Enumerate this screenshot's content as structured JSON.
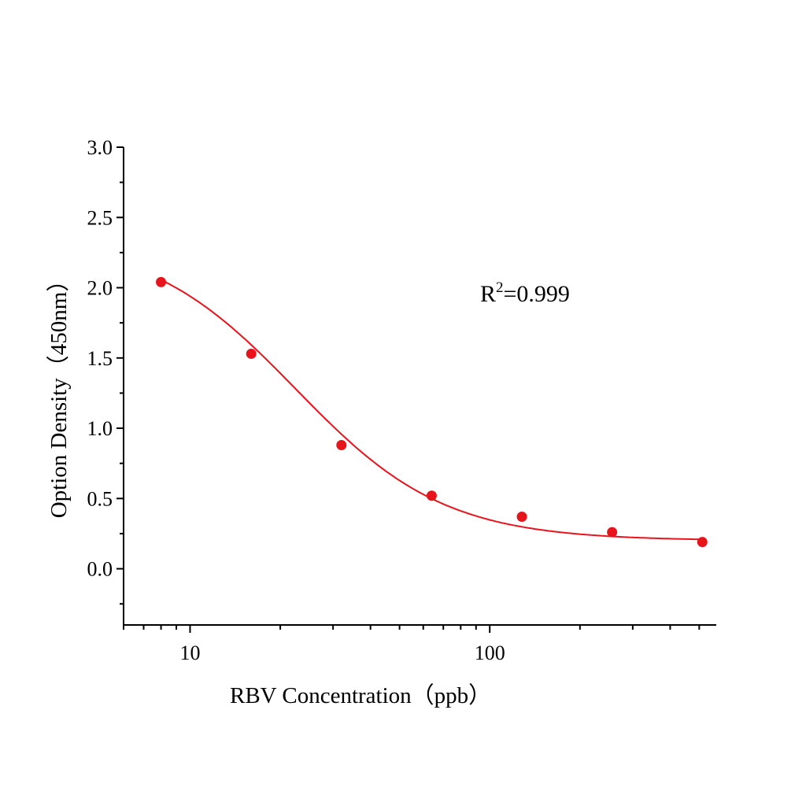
{
  "chart_data": {
    "type": "scatter",
    "title": "",
    "xlabel": "RBV  Concentration（ppb）",
    "ylabel": "Option Density（450nm）",
    "xscale": "log",
    "xlim": [
      6,
      570
    ],
    "ylim": [
      -0.4,
      3.0
    ],
    "xticks": [
      10,
      100
    ],
    "xtick_labels": [
      "10",
      "100"
    ],
    "yticks": [
      0.0,
      0.5,
      1.0,
      1.5,
      2.0,
      2.5,
      3.0
    ],
    "ytick_labels": [
      "0.0",
      "0.5",
      "1.0",
      "1.5",
      "2.0",
      "2.5",
      "3.0"
    ],
    "grid": false,
    "series": [
      {
        "x": [
          8,
          16,
          32,
          64,
          128,
          256,
          512
        ],
        "y": [
          2.04,
          1.53,
          0.88,
          0.52,
          0.37,
          0.26,
          0.19
        ],
        "color": "#e8141c",
        "fit_curve": "4PL"
      }
    ],
    "annotation": {
      "base": "R",
      "sup": "2",
      "rest": "=0.999"
    }
  }
}
